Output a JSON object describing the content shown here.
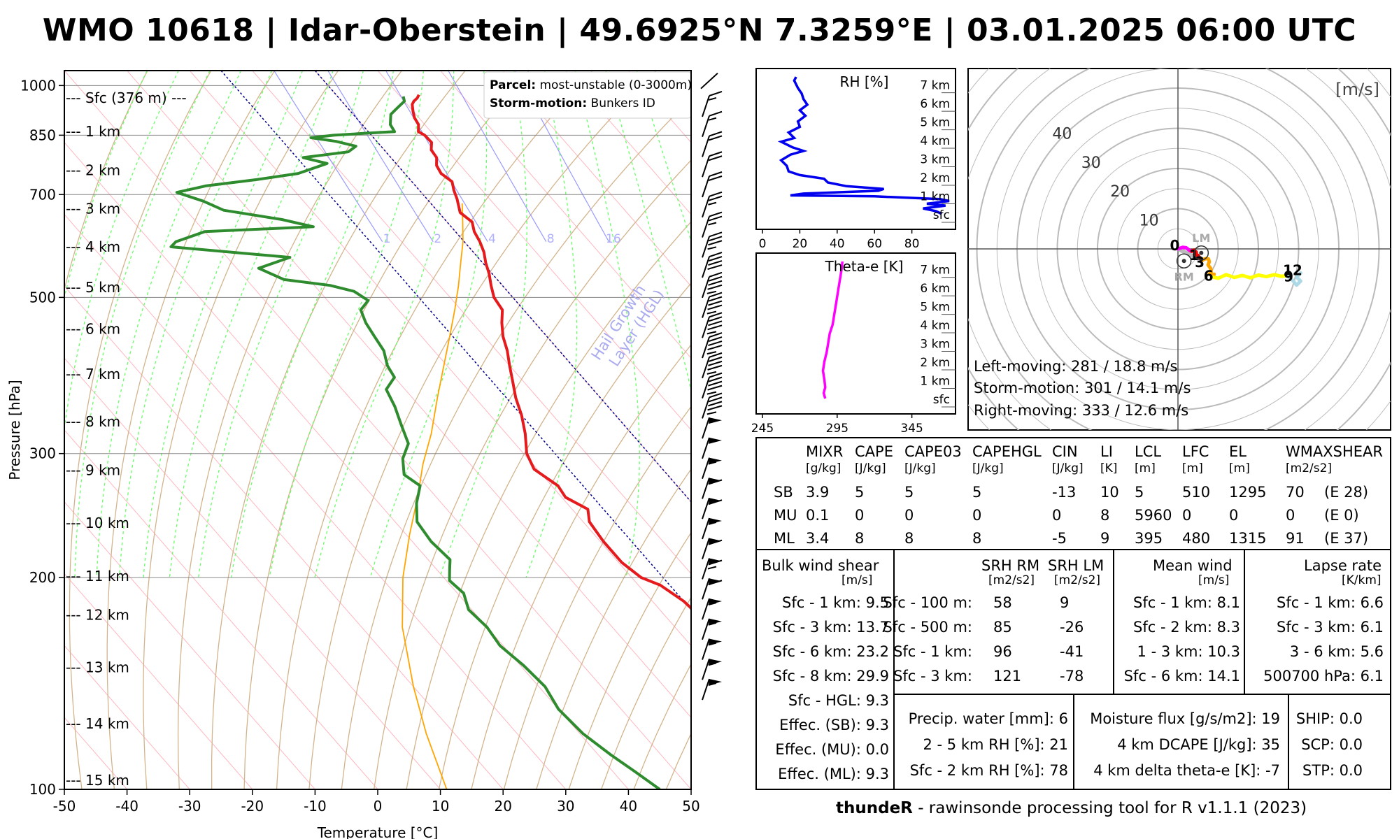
{
  "title": "WMO 10618 | Idar-Oberstein | 49.6925°N 7.3259°E | 03.01.2025 06:00 UTC",
  "skewt": {
    "xlabel": "Temperature [°C]",
    "ylabel": "Pressure [hPa]",
    "xticks": [
      -50,
      -40,
      -30,
      -20,
      -10,
      0,
      10,
      20,
      30,
      40,
      50
    ],
    "pticks": [
      100,
      200,
      300,
      500,
      700,
      850,
      1000
    ],
    "heights": [
      {
        "label": "--- 15 km",
        "p": 103
      },
      {
        "label": "--- 14 km",
        "p": 124
      },
      {
        "label": "--- 13 km",
        "p": 149
      },
      {
        "label": "--- 12 km",
        "p": 177
      },
      {
        "label": "--- 11 km",
        "p": 201
      },
      {
        "label": "--- 10 km",
        "p": 239
      },
      {
        "label": "--- 9 km",
        "p": 284
      },
      {
        "label": "--- 8 km",
        "p": 333
      },
      {
        "label": "--- 7 km",
        "p": 389
      },
      {
        "label": "--- 6 km",
        "p": 451
      },
      {
        "label": "--- 5 km",
        "p": 517
      },
      {
        "label": "--- 4 km",
        "p": 590
      },
      {
        "label": "--- 3 km",
        "p": 668
      },
      {
        "label": "--- 2 km",
        "p": 758
      },
      {
        "label": "--- 1 km",
        "p": 861
      },
      {
        "label": "--- Sfc (376 m) ---",
        "p": 960
      }
    ],
    "legend": {
      "parcel_label": "Parcel:",
      "parcel_value": "most-unstable (0-3000m)",
      "storm_label": "Storm-motion:",
      "storm_value": "Bunkers ID"
    },
    "hgl_label_1": "Hail Growth",
    "hgl_label_2": "Layer (HGL)",
    "mixing_labels": [
      "1",
      "2",
      "4",
      "8",
      "16"
    ],
    "temperature_profile": [
      [
        970,
        3.2
      ],
      [
        960,
        2.5
      ],
      [
        950,
        1.5
      ],
      [
        940,
        0.8
      ],
      [
        920,
        0.0
      ],
      [
        900,
        -0.7
      ],
      [
        880,
        -1.0
      ],
      [
        860,
        -2.0
      ],
      [
        850,
        -1.5
      ],
      [
        830,
        -1.4
      ],
      [
        810,
        -2.5
      ],
      [
        790,
        -2.7
      ],
      [
        770,
        -3.8
      ],
      [
        750,
        -4.2
      ],
      [
        730,
        -3.6
      ],
      [
        710,
        -4.5
      ],
      [
        690,
        -5.2
      ],
      [
        660,
        -6.6
      ],
      [
        640,
        -6.0
      ],
      [
        620,
        -7.0
      ],
      [
        600,
        -7.5
      ],
      [
        580,
        -8.3
      ],
      [
        560,
        -9.5
      ],
      [
        540,
        -10.5
      ],
      [
        520,
        -11.8
      ],
      [
        500,
        -13.0
      ],
      [
        480,
        -13.4
      ],
      [
        460,
        -15.3
      ],
      [
        440,
        -17.0
      ],
      [
        420,
        -18.3
      ],
      [
        400,
        -20.0
      ],
      [
        380,
        -21.7
      ],
      [
        360,
        -23.5
      ],
      [
        340,
        -25.0
      ],
      [
        320,
        -27.0
      ],
      [
        300,
        -29.5
      ],
      [
        285,
        -30.5
      ],
      [
        270,
        -29.0
      ],
      [
        260,
        -29.4
      ],
      [
        250,
        -27.5
      ],
      [
        240,
        -29.0
      ],
      [
        225,
        -29.5
      ],
      [
        210,
        -29.5
      ],
      [
        200,
        -28.5
      ],
      [
        195,
        -26.5
      ],
      [
        185,
        -25.0
      ],
      [
        175,
        -24.5
      ],
      [
        165,
        -23.5
      ],
      [
        155,
        -23.5
      ],
      [
        145,
        -22.5
      ],
      [
        135,
        -20.0
      ],
      [
        125,
        -18.5
      ],
      [
        118,
        -17.5
      ],
      [
        112,
        -16.5
      ],
      [
        106,
        -14.5
      ],
      [
        100,
        -12.0
      ]
    ],
    "dewpoint_profile": [
      [
        965,
        0.5
      ],
      [
        950,
        0.0
      ],
      [
        930,
        -2.0
      ],
      [
        910,
        -4.0
      ],
      [
        880,
        -5.5
      ],
      [
        860,
        -5.8
      ],
      [
        855,
        -11.0
      ],
      [
        850,
        -16.0
      ],
      [
        843,
        -20.0
      ],
      [
        833,
        -16.5
      ],
      [
        820,
        -14.0
      ],
      [
        805,
        -16.0
      ],
      [
        790,
        -24.0
      ],
      [
        775,
        -21.0
      ],
      [
        750,
        -27.0
      ],
      [
        735,
        -34.5
      ],
      [
        720,
        -43.5
      ],
      [
        705,
        -49.0
      ],
      [
        685,
        -46.0
      ],
      [
        665,
        -44.0
      ],
      [
        645,
        -36.0
      ],
      [
        630,
        -32.0
      ],
      [
        620,
        -50.0
      ],
      [
        600,
        -56.0
      ],
      [
        590,
        -57.5
      ],
      [
        570,
        -40.0
      ],
      [
        550,
        -46.5
      ],
      [
        530,
        -44.0
      ],
      [
        520,
        -37.5
      ],
      [
        510,
        -34.5
      ],
      [
        495,
        -33.5
      ],
      [
        480,
        -36.0
      ],
      [
        460,
        -37.0
      ],
      [
        440,
        -37.5
      ],
      [
        420,
        -38.0
      ],
      [
        400,
        -39.5
      ],
      [
        385,
        -40.0
      ],
      [
        370,
        -43.0
      ],
      [
        350,
        -44.0
      ],
      [
        330,
        -45.5
      ],
      [
        310,
        -47.0
      ],
      [
        295,
        -50.0
      ],
      [
        280,
        -52.0
      ],
      [
        270,
        -51.0
      ],
      [
        255,
        -54.0
      ],
      [
        240,
        -56.5
      ],
      [
        225,
        -57.0
      ],
      [
        212,
        -56.5
      ],
      [
        205,
        -58.0
      ],
      [
        198,
        -59.5
      ],
      [
        190,
        -59.0
      ],
      [
        180,
        -60.5
      ],
      [
        170,
        -60.0
      ],
      [
        160,
        -60.5
      ],
      [
        150,
        -59.5
      ],
      [
        140,
        -59.0
      ],
      [
        130,
        -60.0
      ],
      [
        120,
        -59.5
      ],
      [
        112,
        -58.0
      ],
      [
        106,
        -56.5
      ],
      [
        100,
        -55.0
      ]
    ],
    "parcel_profile": [
      [
        680,
        -5.0
      ],
      [
        640,
        -7.5
      ],
      [
        600,
        -10.2
      ],
      [
        560,
        -13.5
      ],
      [
        520,
        -17.0
      ],
      [
        480,
        -21.0
      ],
      [
        440,
        -25.5
      ],
      [
        400,
        -30.5
      ],
      [
        360,
        -36.0
      ],
      [
        320,
        -42.0
      ],
      [
        290,
        -47.5
      ],
      [
        260,
        -53.0
      ],
      [
        230,
        -59.5
      ],
      [
        200,
        -66.5
      ],
      [
        170,
        -73.5
      ],
      [
        140,
        -80.0
      ],
      [
        120,
        -84.5
      ],
      [
        100,
        -89.0
      ]
    ]
  },
  "rh_panel": {
    "title": "RH [%]",
    "xticks": [
      "0",
      "20",
      "40",
      "60",
      "80"
    ],
    "ylabels": [
      "7 km",
      "6 km",
      "5 km",
      "4 km",
      "3 km",
      "2 km",
      "1 km",
      "sfc"
    ],
    "profile": [
      [
        0,
        96
      ],
      [
        0.15,
        93
      ],
      [
        0.3,
        86
      ],
      [
        0.45,
        98
      ],
      [
        0.55,
        88
      ],
      [
        0.7,
        100
      ],
      [
        0.8,
        95
      ],
      [
        0.95,
        60
      ],
      [
        1.0,
        15
      ],
      [
        1.1,
        22
      ],
      [
        1.25,
        62
      ],
      [
        1.35,
        65
      ],
      [
        1.5,
        45
      ],
      [
        1.7,
        35
      ],
      [
        1.9,
        33
      ],
      [
        2.1,
        20
      ],
      [
        2.3,
        14
      ],
      [
        2.6,
        13
      ],
      [
        2.9,
        10
      ],
      [
        3.2,
        15
      ],
      [
        3.4,
        22
      ],
      [
        3.6,
        16
      ],
      [
        3.9,
        10
      ],
      [
        4.1,
        17
      ],
      [
        4.4,
        14
      ],
      [
        4.7,
        20
      ],
      [
        5.0,
        19
      ],
      [
        5.3,
        23
      ],
      [
        5.6,
        20
      ],
      [
        5.9,
        24
      ],
      [
        6.2,
        22
      ],
      [
        6.5,
        21
      ],
      [
        6.8,
        19
      ],
      [
        7.0,
        18
      ],
      [
        7.2,
        17
      ],
      [
        7.4,
        18
      ]
    ]
  },
  "thetae_panel": {
    "title": "Theta-e [K]",
    "xticks": [
      "245",
      "295",
      "345"
    ],
    "ylabels": [
      "7 km",
      "6 km",
      "5 km",
      "4 km",
      "3 km",
      "2 km",
      "1 km",
      "sfc"
    ],
    "profile": [
      [
        0,
        287
      ],
      [
        0.3,
        286
      ],
      [
        0.6,
        287
      ],
      [
        1.0,
        286.5
      ],
      [
        1.5,
        285.5
      ],
      [
        2.0,
        286.5
      ],
      [
        2.5,
        288
      ],
      [
        3.0,
        289
      ],
      [
        3.5,
        290
      ],
      [
        4.0,
        292
      ],
      [
        4.5,
        293
      ],
      [
        5.0,
        294
      ],
      [
        5.5,
        295
      ],
      [
        6.0,
        296
      ],
      [
        6.5,
        297
      ],
      [
        7.0,
        298
      ],
      [
        7.4,
        298.5
      ]
    ]
  },
  "hodograph": {
    "unit_label": "[m/s]",
    "ring_labels": [
      "10",
      "20",
      "30",
      "40"
    ],
    "lm_label": "LM",
    "rm_label": "RM",
    "lm": [
      5.8,
      -1.0
    ],
    "rm": [
      1.5,
      -3.0
    ],
    "segments": [
      {
        "color": "#ff00ff",
        "points": [
          [
            0,
            0
          ],
          [
            0.6,
            0.2
          ],
          [
            1.2,
            0.4
          ],
          [
            2.0,
            0.3
          ],
          [
            2.4,
            0
          ],
          [
            2.9,
            -0.4
          ],
          [
            3.4,
            -0.6
          ]
        ]
      },
      {
        "color": "#ff0000",
        "points": [
          [
            3.4,
            -0.6
          ],
          [
            4.0,
            -0.3
          ],
          [
            4.5,
            -0.8
          ],
          [
            4.6,
            -1.4
          ],
          [
            4.1,
            -1.3
          ],
          [
            4.6,
            -1.8
          ],
          [
            5.0,
            -1.6
          ],
          [
            5.2,
            -2.0
          ]
        ]
      },
      {
        "color": "#8b1a1a",
        "points": [
          [
            5.2,
            -2.0
          ],
          [
            5.6,
            -2.3
          ],
          [
            5.9,
            -2.6
          ],
          [
            6.0,
            -2.9
          ]
        ]
      },
      {
        "color": "#ffa500",
        "points": [
          [
            6.0,
            -2.9
          ],
          [
            6.4,
            -2.6
          ],
          [
            7.0,
            -2.4
          ],
          [
            7.6,
            -2.5
          ],
          [
            7.8,
            -3.2
          ],
          [
            7.5,
            -4.0
          ],
          [
            8.1,
            -4.8
          ],
          [
            8.3,
            -5.8
          ],
          [
            7.8,
            -6.3
          ],
          [
            8.5,
            -6.6
          ],
          [
            9.0,
            -6.3
          ],
          [
            8.7,
            -7.0
          ]
        ]
      },
      {
        "color": "#ffff00",
        "points": [
          [
            8.7,
            -7.0
          ],
          [
            10,
            -7.3
          ],
          [
            12,
            -6.4
          ],
          [
            14,
            -7.1
          ],
          [
            16,
            -6.6
          ],
          [
            18,
            -7.2
          ],
          [
            20,
            -6.5
          ],
          [
            22,
            -6.9
          ],
          [
            24,
            -6.4
          ],
          [
            25.5,
            -6.8
          ],
          [
            27.2,
            -6.7
          ]
        ]
      },
      {
        "color": "#add8e6",
        "points": [
          [
            27.2,
            -6.7
          ],
          [
            28.5,
            -7.8
          ],
          [
            29.5,
            -9.0
          ],
          [
            30.5,
            -8.0
          ],
          [
            29.5,
            -7.0
          ],
          [
            30.5,
            -6.0
          ]
        ]
      }
    ],
    "labels": [
      {
        "text": "0",
        "u": -0.8,
        "v": 0.9
      },
      {
        "text": "1",
        "u": 4.0,
        "v": -1.6
      },
      {
        "text": "3",
        "u": 5.4,
        "v": -3.3
      },
      {
        "text": "6",
        "u": 7.6,
        "v": -6.7
      },
      {
        "text": "9",
        "u": 27.5,
        "v": -6.9
      },
      {
        "text": "12",
        "u": 28.5,
        "v": -5.3
      }
    ],
    "motions": [
      "Left-moving: 281 / 18.8 m/s",
      "Storm-motion: 301 / 14.1 m/s",
      "Right-moving: 333 / 12.6 m/s"
    ]
  },
  "indices": {
    "headers": [
      "MIXR",
      "CAPE",
      "CAPE03",
      "CAPEHGL",
      "CIN",
      "LI",
      "LCL",
      "LFC",
      "EL",
      "WMAXSHEAR"
    ],
    "units": [
      "[g/kg]",
      "[J/kg]",
      "[J/kg]",
      "[J/kg]",
      "[J/kg]",
      "[K]",
      "[m]",
      "[m]",
      "[m]",
      "[m2/s2]"
    ],
    "rows": [
      {
        "name": "SB",
        "values": [
          "3.9",
          "5",
          "5",
          "5",
          "-13",
          "10",
          "5",
          "510",
          "1295",
          "70",
          "(E 28)"
        ]
      },
      {
        "name": "MU",
        "values": [
          "0.1",
          "0",
          "0",
          "0",
          "0",
          "8",
          "5960",
          "0",
          "0",
          "0",
          "(E 0)"
        ]
      },
      {
        "name": "ML",
        "values": [
          "3.4",
          "8",
          "8",
          "8",
          "-5",
          "9",
          "395",
          "480",
          "1315",
          "91",
          "(E 37)"
        ]
      }
    ]
  },
  "bulk": {
    "title": "Bulk wind shear",
    "unit": "[m/s]",
    "rows": [
      "Sfc - 1 km: 9.5",
      "Sfc - 3 km: 13.7",
      "Sfc - 6 km: 23.2",
      "Sfc - 8 km: 29.9",
      "Sfc - HGL: 9.3",
      "Effec. (SB): 9.3",
      "Effec. (MU): 0.0",
      "Effec. (ML): 9.3"
    ]
  },
  "srh": {
    "title_rm": "SRH RM",
    "title_lm": "SRH LM",
    "unit_rm": "[m2/s2]",
    "unit_lm": "[m2/s2]",
    "rows": [
      {
        "label": "Sfc - 100 m:",
        "rm": "58",
        "lm": "9"
      },
      {
        "label": "Sfc - 500 m:",
        "rm": "85",
        "lm": "-26"
      },
      {
        "label": "Sfc - 1 km:",
        "rm": "96",
        "lm": "-41"
      },
      {
        "label": "Sfc - 3 km:",
        "rm": "121",
        "lm": "-78"
      }
    ]
  },
  "meanwind": {
    "title": "Mean wind",
    "unit": "[m/s]",
    "rows": [
      "Sfc - 1 km: 8.1",
      "Sfc - 2 km: 8.3",
      "1 - 3 km: 10.3",
      "Sfc - 6 km: 14.1"
    ]
  },
  "lapse": {
    "title": "Lapse rate",
    "unit": "[K/km]",
    "rows": [
      "Sfc - 1 km: 6.6",
      "Sfc - 3 km: 6.1",
      "3 - 6 km: 5.6",
      "500700 hPa: 6.1"
    ]
  },
  "moisture": {
    "left": [
      "Precip. water [mm]: 6",
      "2 - 5 km RH [%]: 21",
      "Sfc - 2 km RH [%]: 78"
    ],
    "right": [
      "Moisture flux [g/s/m2]: 19",
      "4 km DCAPE [J/kg]: 35",
      "4 km delta theta-e [K]: -7"
    ]
  },
  "composite": [
    "SHIP: 0.0",
    "SCP: 0.0",
    "STP: 0.0"
  ],
  "footer": {
    "name": "thundeR",
    "rest": " - rawinsonde processing tool for R v1.1.1 (2023)"
  },
  "colors": {
    "temperature": "#e41a1c",
    "dewpoint": "#2e8b2e",
    "parcel": "#ffa500",
    "dry_adiabat": "#d2b48c",
    "moist_adiabat": "#66ff66",
    "isotherm": "#ffb6c1",
    "mixing_ratio": "#9999ff",
    "hgl": "#00008b",
    "rh": "#0000ee",
    "thetae": "#ff00ff",
    "barb": "#000000"
  }
}
